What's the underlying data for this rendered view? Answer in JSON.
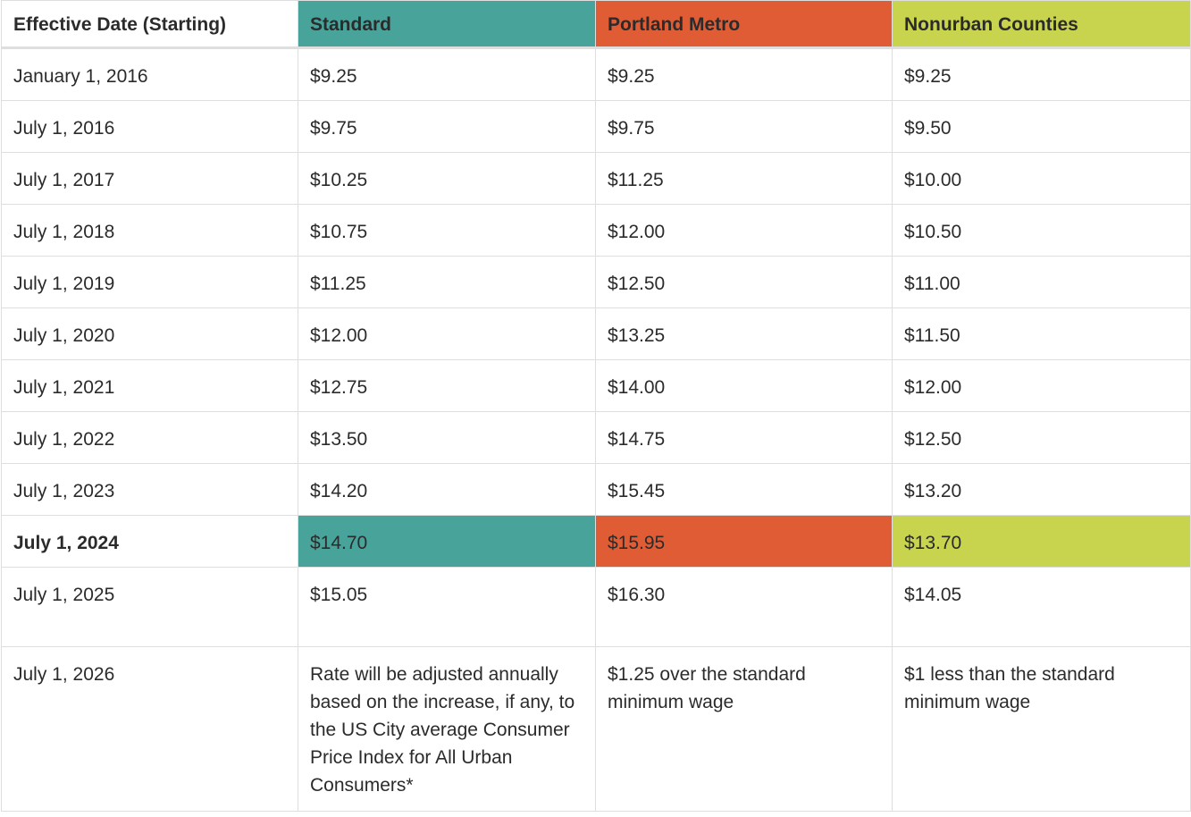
{
  "colors": {
    "standard": "#48a39a",
    "portland_metro": "#e05c35",
    "nonurban": "#c8d44e"
  },
  "headers": [
    "Effective Date (Starting)",
    "Standard",
    "Portland Metro",
    "Nonurban Counties"
  ],
  "rows": [
    [
      "January 1, 2016",
      "$9.25",
      "$9.25",
      "$9.25"
    ],
    [
      "July 1, 2016",
      "$9.75",
      "$9.75",
      "$9.50"
    ],
    [
      "July 1, 2017",
      "$10.25",
      "$11.25",
      "$10.00"
    ],
    [
      "July 1, 2018",
      "$10.75",
      "$12.00",
      "$10.50"
    ],
    [
      "July 1, 2019",
      "$11.25",
      "$12.50",
      "$11.00"
    ],
    [
      "July 1, 2020",
      "$12.00",
      "$13.25",
      "$11.50"
    ],
    [
      "July 1, 2021",
      "$12.75",
      "$14.00",
      "$12.00"
    ],
    [
      "July 1, 2022",
      "$13.50",
      "$14.75",
      "$12.50"
    ],
    [
      "July 1, 2023",
      "$14.20",
      "$15.45",
      "$13.20"
    ],
    [
      "July 1, 2024",
      "$14.70",
      "$15.95",
      "$13.70"
    ],
    [
      "July 1, 2025",
      "$15.05",
      "$16.30",
      "$14.05"
    ],
    [
      "July 1, 2026",
      "Rate will be adjusted annually based on the increase, if any, to the US City average Consumer Price Index for All Urban Consumers*",
      "$1.25 over the standard minimum wage",
      "$1 less than the standard minimum wage"
    ]
  ],
  "highlighted_row": "July 1, 2024"
}
